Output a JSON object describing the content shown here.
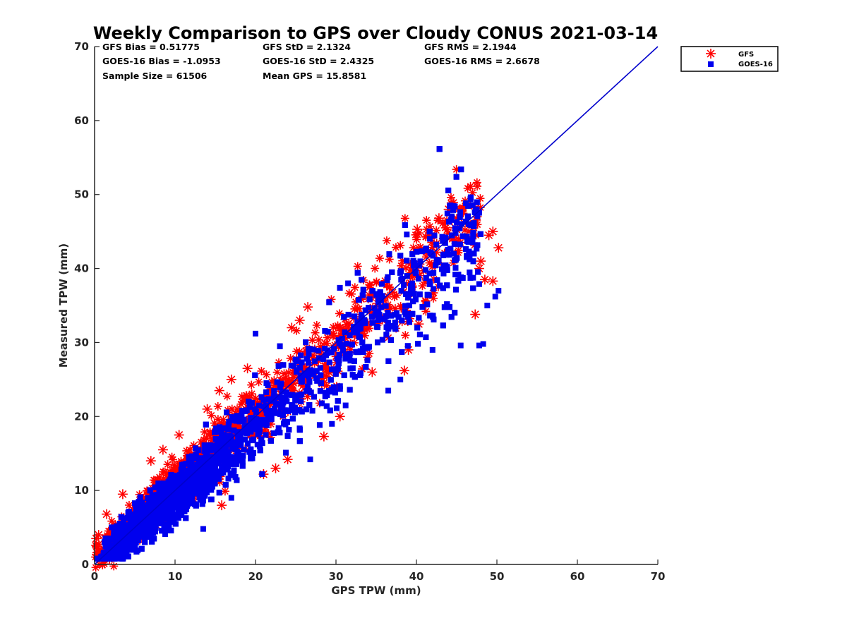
{
  "chart_data": {
    "type": "scatter",
    "title": "Weekly Comparison to GPS over Cloudy CONUS 2021-03-14",
    "xlabel": "GPS TPW (mm)",
    "ylabel": "Measured TPW (mm)",
    "xlim": [
      0,
      70
    ],
    "ylim": [
      0,
      70
    ],
    "xticks": [
      "0",
      "10",
      "20",
      "30",
      "40",
      "50",
      "60",
      "70"
    ],
    "yticks": [
      "0",
      "10",
      "20",
      "30",
      "40",
      "50",
      "60",
      "70"
    ],
    "grid": false,
    "legend_position": "outside-top-right",
    "reference_line": {
      "x": [
        0,
        70
      ],
      "y": [
        0,
        70
      ],
      "color": "#0000cc"
    },
    "series": [
      {
        "name": "GFS",
        "marker": "asterisk",
        "color": "#ff0000",
        "trend": {
          "slope": 0.98,
          "intercept": 0.8
        },
        "x_range": [
          0,
          50
        ],
        "outliers": [
          {
            "x": 44.0,
            "y": 48.0
          },
          {
            "x": 45.8,
            "y": 48.2
          },
          {
            "x": 42.8,
            "y": 46.8
          },
          {
            "x": 44.8,
            "y": 45.5
          },
          {
            "x": 47.5,
            "y": 47.0
          },
          {
            "x": 49.5,
            "y": 45.0
          },
          {
            "x": 49.0,
            "y": 44.5
          },
          {
            "x": 50.2,
            "y": 42.8
          },
          {
            "x": 48.5,
            "y": 38.5
          },
          {
            "x": 49.5,
            "y": 38.3
          },
          {
            "x": 47.3,
            "y": 33.8
          },
          {
            "x": 47.8,
            "y": 40.0
          },
          {
            "x": 48.0,
            "y": 41.0
          },
          {
            "x": 39.0,
            "y": 29.0
          },
          {
            "x": 38.5,
            "y": 26.2
          },
          {
            "x": 40.3,
            "y": 32.5
          },
          {
            "x": 40.1,
            "y": 45.3
          },
          {
            "x": 26.5,
            "y": 34.8
          },
          {
            "x": 25.5,
            "y": 33.0
          },
          {
            "x": 24.5,
            "y": 32.0
          },
          {
            "x": 19.0,
            "y": 26.5
          },
          {
            "x": 17.0,
            "y": 25.0
          },
          {
            "x": 15.5,
            "y": 23.5
          },
          {
            "x": 14.0,
            "y": 21.0
          },
          {
            "x": 10.5,
            "y": 17.5
          },
          {
            "x": 8.5,
            "y": 15.5
          },
          {
            "x": 7.0,
            "y": 14.0
          },
          {
            "x": 3.5,
            "y": 9.5
          },
          {
            "x": 1.5,
            "y": 6.8
          },
          {
            "x": 0.5,
            "y": 4.0
          },
          {
            "x": 0.2,
            "y": 3.5
          },
          {
            "x": 12.2,
            "y": 9.6
          },
          {
            "x": 15.8,
            "y": 8.0
          },
          {
            "x": 21.0,
            "y": 12.2
          },
          {
            "x": 22.5,
            "y": 13.0
          },
          {
            "x": 24.0,
            "y": 14.2
          },
          {
            "x": 28.5,
            "y": 17.3
          },
          {
            "x": 30.5,
            "y": 20.0
          },
          {
            "x": 34.5,
            "y": 26.0
          },
          {
            "x": 42.5,
            "y": 42.2
          }
        ]
      },
      {
        "name": "GOES-16",
        "marker": "square",
        "color": "#0000ee",
        "trend": {
          "slope": 0.95,
          "intercept": -0.3
        },
        "x_range": [
          0,
          50
        ],
        "outliers": [
          {
            "x": 44.2,
            "y": 48.5
          },
          {
            "x": 47.5,
            "y": 48.0
          },
          {
            "x": 45.5,
            "y": 29.6
          },
          {
            "x": 47.8,
            "y": 29.6
          },
          {
            "x": 48.3,
            "y": 29.8
          },
          {
            "x": 20.0,
            "y": 31.2
          },
          {
            "x": 42.0,
            "y": 29.0
          },
          {
            "x": 36.5,
            "y": 23.5
          },
          {
            "x": 38.0,
            "y": 25.0
          },
          {
            "x": 31.2,
            "y": 21.5
          },
          {
            "x": 29.5,
            "y": 19.0
          },
          {
            "x": 26.8,
            "y": 14.2
          },
          {
            "x": 17.0,
            "y": 9.0
          },
          {
            "x": 13.5,
            "y": 4.8
          },
          {
            "x": 49.8,
            "y": 36.2
          },
          {
            "x": 50.2,
            "y": 37.0
          },
          {
            "x": 48.8,
            "y": 35.0
          },
          {
            "x": 31.5,
            "y": 38.0
          },
          {
            "x": 38.8,
            "y": 44.6
          }
        ]
      }
    ],
    "annotations": [
      {
        "label": "GFS Bias = 0.51775",
        "col": 0,
        "row": 0
      },
      {
        "label": "GFS StD = 2.1324",
        "col": 1,
        "row": 0
      },
      {
        "label": "GFS RMS = 2.1944",
        "col": 2,
        "row": 0
      },
      {
        "label": "GOES-16 Bias = -1.0953",
        "col": 0,
        "row": 1
      },
      {
        "label": "GOES-16 StD = 2.4325",
        "col": 1,
        "row": 1
      },
      {
        "label": "GOES-16 RMS = 2.6678",
        "col": 2,
        "row": 1
      },
      {
        "label": "Sample Size = 61506",
        "col": 0,
        "row": 2
      },
      {
        "label": "Mean GPS = 15.8581",
        "col": 1,
        "row": 2
      }
    ]
  }
}
